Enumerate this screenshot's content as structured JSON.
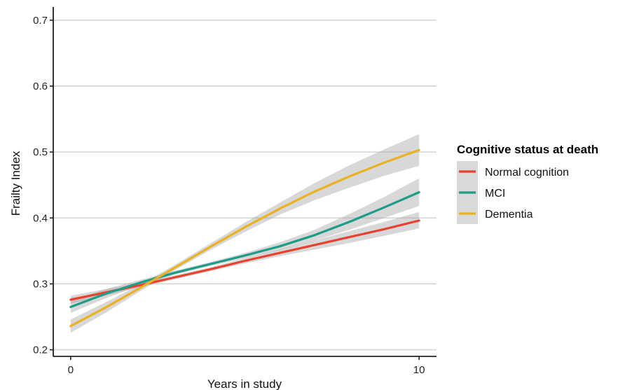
{
  "chart_data": {
    "type": "line",
    "xlabel": "Years in study",
    "ylabel": "Frailty Index",
    "xlim": [
      -0.5,
      10.5
    ],
    "ylim": [
      0.19,
      0.72
    ],
    "x_ticks": [
      "0",
      "10"
    ],
    "y_ticks": [
      "0.2",
      "0.3",
      "0.4",
      "0.5",
      "0.6",
      "0.7"
    ],
    "grid": "horizontal major",
    "legend": {
      "title": "Cognitive status at death",
      "position": "right"
    },
    "series": [
      {
        "name": "Normal cognition",
        "color": "#E8412F",
        "x": [
          0,
          1,
          2,
          3,
          4,
          5,
          6,
          7,
          8,
          9,
          10
        ],
        "values": [
          0.276,
          0.287,
          0.298,
          0.31,
          0.322,
          0.335,
          0.347,
          0.359,
          0.371,
          0.383,
          0.396
        ],
        "lower": [
          0.27,
          0.282,
          0.295,
          0.307,
          0.319,
          0.331,
          0.342,
          0.352,
          0.362,
          0.373,
          0.384
        ],
        "upper": [
          0.282,
          0.292,
          0.302,
          0.313,
          0.325,
          0.339,
          0.352,
          0.366,
          0.38,
          0.394,
          0.409
        ]
      },
      {
        "name": "MCI",
        "color": "#1E9C89",
        "x": [
          0,
          1,
          2,
          3,
          4,
          5,
          6,
          7,
          8,
          9,
          10
        ],
        "values": [
          0.265,
          0.285,
          0.302,
          0.317,
          0.33,
          0.343,
          0.357,
          0.374,
          0.394,
          0.416,
          0.439
        ],
        "lower": [
          0.256,
          0.278,
          0.298,
          0.314,
          0.327,
          0.339,
          0.351,
          0.366,
          0.382,
          0.4,
          0.418
        ],
        "upper": [
          0.274,
          0.292,
          0.306,
          0.32,
          0.333,
          0.347,
          0.363,
          0.382,
          0.406,
          0.432,
          0.46
        ]
      },
      {
        "name": "Dementia",
        "color": "#EBB124",
        "x": [
          0,
          1,
          2,
          3,
          4,
          5,
          6,
          7,
          8,
          9,
          10
        ],
        "values": [
          0.236,
          0.264,
          0.294,
          0.325,
          0.356,
          0.386,
          0.414,
          0.44,
          0.463,
          0.484,
          0.503
        ],
        "lower": [
          0.226,
          0.256,
          0.289,
          0.321,
          0.351,
          0.379,
          0.405,
          0.427,
          0.446,
          0.464,
          0.479
        ],
        "upper": [
          0.246,
          0.272,
          0.299,
          0.329,
          0.361,
          0.393,
          0.423,
          0.453,
          0.48,
          0.504,
          0.527
        ]
      }
    ]
  }
}
